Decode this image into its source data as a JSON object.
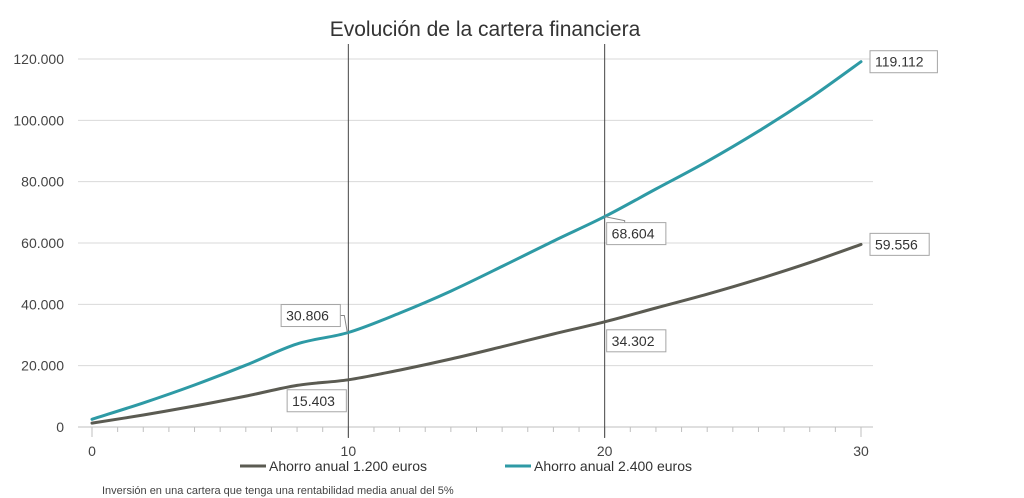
{
  "chart_data": {
    "type": "line",
    "title": "Evolución de la cartera financiera",
    "xlabel": "",
    "ylabel": "",
    "x_ticks": [
      "0",
      "10",
      "20",
      "30"
    ],
    "y_ticks": [
      "0",
      "20.000",
      "40.000",
      "60.000",
      "80.000",
      "100.000",
      "120.000"
    ],
    "xlim": [
      0,
      30
    ],
    "ylim": [
      0,
      120000
    ],
    "grid": "horizontal",
    "legend_position": "bottom",
    "series": [
      {
        "name": "Ahorro anual 1.200 euros",
        "color": "#5b5b52",
        "x": [
          0,
          2,
          4,
          6,
          8,
          10,
          12,
          14,
          16,
          18,
          20,
          22,
          24,
          26,
          28,
          30
        ],
        "values": [
          1260,
          3926,
          6848,
          10071,
          13555,
          15403,
          18570,
          22160,
          26180,
          30310,
          34302,
          38800,
          43300,
          48230,
          53600,
          59556
        ]
      },
      {
        "name": "Ahorro anual 2.400 euros",
        "color": "#2e9aa5",
        "x": [
          0,
          2,
          4,
          6,
          8,
          10,
          12,
          14,
          16,
          18,
          20,
          22,
          24,
          26,
          28,
          30
        ],
        "values": [
          2520,
          7852,
          13696,
          20142,
          27110,
          30806,
          37140,
          44320,
          52360,
          60620,
          68604,
          77600,
          86600,
          96460,
          107200,
          119112
        ]
      }
    ],
    "reference_lines_x": [
      10,
      20
    ],
    "data_labels": [
      {
        "series": 0,
        "x": 10,
        "text": "15.403"
      },
      {
        "series": 1,
        "x": 10,
        "text": "30.806"
      },
      {
        "series": 0,
        "x": 20,
        "text": "34.302"
      },
      {
        "series": 1,
        "x": 20,
        "text": "68.604"
      },
      {
        "series": 0,
        "x": 30,
        "text": "59.556"
      },
      {
        "series": 1,
        "x": 30,
        "text": "119.112"
      }
    ],
    "note": "Inversión en una cartera que tenga una rentabilidad media anual del 5%"
  }
}
